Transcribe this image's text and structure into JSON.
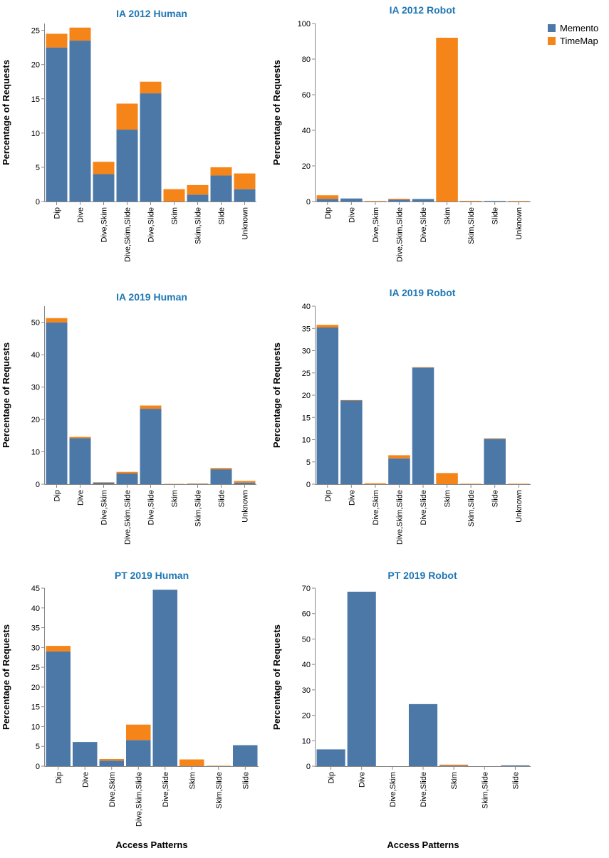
{
  "legend": {
    "items": [
      {
        "name": "Memento",
        "color": "#4c78a8"
      },
      {
        "name": "TimeMap",
        "color": "#f58518"
      }
    ]
  },
  "title_color": "#1f77b4",
  "chart_data": [
    {
      "type": "bar",
      "stacked": true,
      "title": "IA 2012 Human",
      "xlabel": "",
      "ylabel": "Percentage of Requests",
      "ylim": [
        0,
        26
      ],
      "yticks": [
        0,
        5,
        10,
        15,
        20,
        25
      ],
      "categories": [
        "Dip",
        "Dive",
        "Dive,Skim",
        "Dive,Skim,Slide",
        "Dive,Slide",
        "Skim",
        "Skim,Slide",
        "Slide",
        "Unknown"
      ],
      "series": [
        {
          "name": "Memento",
          "values": [
            22.5,
            23.5,
            4.0,
            10.5,
            15.8,
            0.0,
            1.0,
            3.8,
            1.8
          ]
        },
        {
          "name": "TimeMap",
          "values": [
            2.0,
            1.9,
            1.8,
            3.8,
            1.7,
            1.8,
            1.4,
            1.2,
            2.3
          ]
        }
      ]
    },
    {
      "type": "bar",
      "stacked": true,
      "title": "IA 2012 Robot",
      "xlabel": "",
      "ylabel": "Percentage of Requests",
      "ylim": [
        0,
        100
      ],
      "yticks": [
        0,
        20,
        40,
        60,
        80,
        100
      ],
      "categories": [
        "Dip",
        "Dive",
        "Dive,Skim",
        "Dive,Skim,Slide",
        "Dive,Slide",
        "Skim",
        "Skim,Slide",
        "Slide",
        "Unknown"
      ],
      "series": [
        {
          "name": "Memento",
          "values": [
            1.5,
            1.7,
            0.1,
            1.0,
            1.4,
            0.0,
            0.1,
            0.3,
            0.1
          ]
        },
        {
          "name": "TimeMap",
          "values": [
            2.0,
            0.0,
            0.2,
            0.5,
            0.0,
            92.0,
            0.3,
            0.0,
            0.2
          ]
        }
      ]
    },
    {
      "type": "bar",
      "stacked": true,
      "title": "IA 2019 Human",
      "xlabel": "",
      "ylabel": "Percentage of Requests",
      "ylim": [
        0,
        55
      ],
      "yticks": [
        0,
        10,
        20,
        30,
        40,
        50
      ],
      "categories": [
        "Dip",
        "Dive",
        "Dive,Skim",
        "Dive,Skim,Slide",
        "Dive,Slide",
        "Skim",
        "Skim,Slide",
        "Slide",
        "Unknown"
      ],
      "series": [
        {
          "name": "Memento",
          "values": [
            50.0,
            14.2,
            0.5,
            3.3,
            23.3,
            0.0,
            0.1,
            4.6,
            0.5
          ]
        },
        {
          "name": "TimeMap",
          "values": [
            1.3,
            0.4,
            0.1,
            0.5,
            1.0,
            0.1,
            0.1,
            0.4,
            0.5
          ]
        }
      ]
    },
    {
      "type": "bar",
      "stacked": true,
      "title": "IA 2019 Robot",
      "xlabel": "",
      "ylabel": "Percentage of Requests",
      "ylim": [
        0,
        40
      ],
      "yticks": [
        0,
        5,
        10,
        15,
        20,
        25,
        30,
        35,
        40
      ],
      "categories": [
        "Dip",
        "Dive",
        "Dive,Skim",
        "Dive,Skim,Slide",
        "Dive,Slide",
        "Skim",
        "Skim,Slide",
        "Slide",
        "Unknown"
      ],
      "series": [
        {
          "name": "Memento",
          "values": [
            35.2,
            18.8,
            0.0,
            5.8,
            26.2,
            0.0,
            0.0,
            10.2,
            0.0
          ]
        },
        {
          "name": "TimeMap",
          "values": [
            0.6,
            0.1,
            0.2,
            0.7,
            0.1,
            2.5,
            0.1,
            0.1,
            0.1
          ]
        }
      ]
    },
    {
      "type": "bar",
      "stacked": true,
      "title": "PT 2019 Human",
      "xlabel": "Access Patterns",
      "ylabel": "Percentage of Requests",
      "ylim": [
        0,
        45
      ],
      "yticks": [
        0,
        5,
        10,
        15,
        20,
        25,
        30,
        35,
        40,
        45
      ],
      "categories": [
        "Dip",
        "Dive",
        "Dive,Skim",
        "Dive,Skim,Slide",
        "Dive,Slide",
        "Skim",
        "Skim,Slide",
        "Slide"
      ],
      "series": [
        {
          "name": "Memento",
          "values": [
            29.0,
            6.1,
            1.4,
            6.6,
            44.6,
            0.0,
            0.0,
            5.3
          ]
        },
        {
          "name": "TimeMap",
          "values": [
            1.4,
            0.0,
            0.4,
            3.9,
            0.0,
            1.7,
            0.1,
            0.0
          ]
        }
      ]
    },
    {
      "type": "bar",
      "stacked": true,
      "title": "PT 2019 Robot",
      "xlabel": "Access Patterns",
      "ylabel": "Percentage of Requests",
      "ylim": [
        0,
        70
      ],
      "yticks": [
        0,
        10,
        20,
        30,
        40,
        50,
        60,
        70
      ],
      "categories": [
        "Dip",
        "Dive",
        "Dive,Skim",
        "Dive,Slide",
        "Skim",
        "Skim,Slide",
        "Slide"
      ],
      "series": [
        {
          "name": "Memento",
          "values": [
            6.6,
            68.6,
            0.0,
            24.4,
            0.2,
            0.0,
            0.3
          ]
        },
        {
          "name": "TimeMap",
          "values": [
            0.0,
            0.0,
            0.0,
            0.0,
            0.4,
            0.0,
            0.0
          ]
        }
      ]
    }
  ]
}
